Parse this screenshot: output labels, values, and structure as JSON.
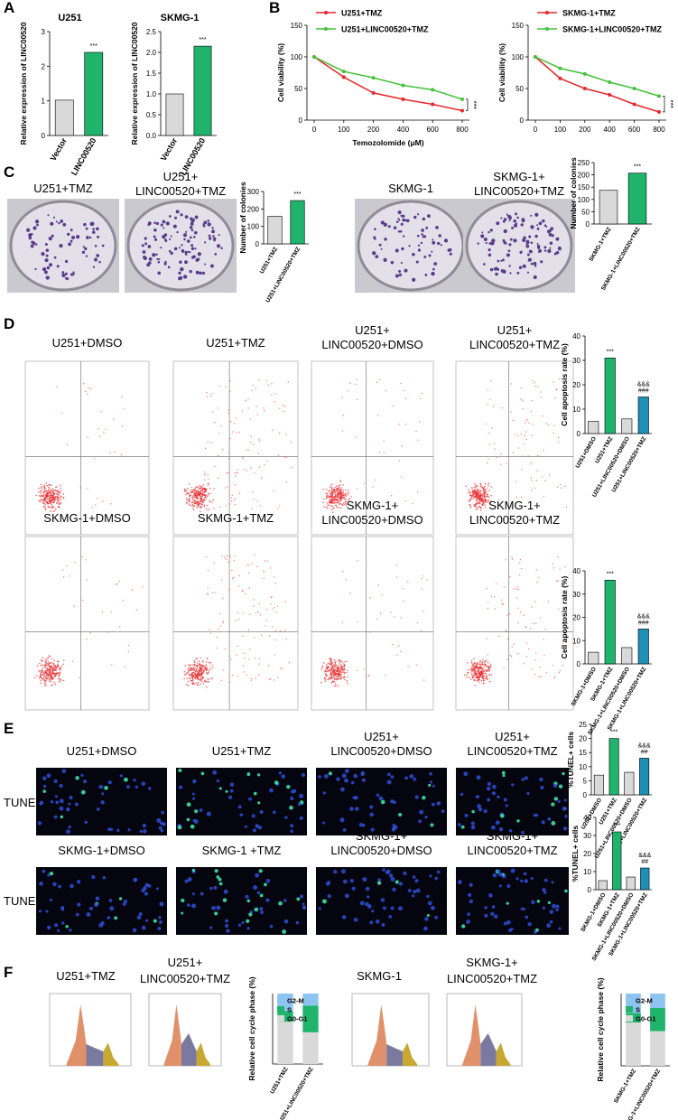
{
  "figure": {
    "panel_labels": [
      "A",
      "B",
      "C",
      "D",
      "E",
      "F"
    ],
    "c_captions": [
      [
        "U251+TMZ"
      ],
      [
        "U251+",
        "LINC00520+TMZ"
      ],
      [
        "SKMG-1"
      ],
      [
        "SKMG-1+",
        "LINC00520+TMZ"
      ]
    ],
    "d_captions": [
      [
        "U251+DMSO"
      ],
      [
        "U251+TMZ"
      ],
      [
        "U251+",
        "LINC00520+DMSO"
      ],
      [
        "U251+",
        "LINC00520+TMZ"
      ],
      [
        "SKMG-1+DMSO"
      ],
      [
        "SKMG-1+TMZ"
      ],
      [
        "SKMG-1+",
        "LINC00520+DMSO"
      ],
      [
        "SKMG-1+",
        "LINC00520+TMZ"
      ]
    ],
    "e_captions": [
      [
        "U251+DMSO"
      ],
      [
        "U251+TMZ"
      ],
      [
        "U251+",
        "LINC00520+DMSO"
      ],
      [
        "U251+",
        "LINC00520+TMZ"
      ],
      [
        "SKMG-1+DMSO"
      ],
      [
        "SKMG-1  +TMZ"
      ],
      [
        "SKMG-1+",
        "LINC00520+DMSO"
      ],
      [
        "SKMG-1+",
        "LINC00520+TMZ"
      ]
    ],
    "e_row_labels": [
      "TUNEL",
      "TUNEL"
    ],
    "f_captions": [
      [
        "U251+TMZ"
      ],
      [
        "U251+",
        "LINC00520+TMZ"
      ],
      [
        "SKMG-1"
      ],
      [
        "SKMG-1+",
        "LINC00520+TMZ"
      ]
    ]
  },
  "chart_data": [
    {
      "type": "bar",
      "title": "U251",
      "ylabel": "Relative expression of LINC00520",
      "categories": [
        "Vector",
        "LINC00520"
      ],
      "values": [
        1.02,
        2.4
      ],
      "colors": [
        "#d9d9d9",
        "#1fb36c"
      ],
      "annotations": [
        null,
        [
          "***"
        ]
      ],
      "ylim": [
        0,
        3
      ],
      "yticks": [
        0,
        1,
        2,
        3
      ]
    },
    {
      "type": "bar",
      "title": "SKMG-1",
      "ylabel": "Relative expression of LINC00520",
      "categories": [
        "Vector",
        "LINC00520"
      ],
      "values": [
        1.0,
        2.15
      ],
      "colors": [
        "#d9d9d9",
        "#1fb36c"
      ],
      "annotations": [
        null,
        [
          "***"
        ]
      ],
      "ylim": [
        0,
        2.5
      ],
      "yticks": [
        {
          "value": 0,
          "label": "0.0"
        },
        0.5,
        {
          "value": 1,
          "label": "1.0"
        },
        1.5,
        {
          "value": 2,
          "label": "2.0"
        },
        2.5
      ]
    },
    {
      "type": "line",
      "ylabel": "Cell viability (%)",
      "xlabel": "Temozolomide (μM)",
      "categories": [
        "0",
        "100",
        "200",
        "400",
        "600",
        "800"
      ],
      "series": [
        {
          "name": "U251+TMZ",
          "color": "#e8262a",
          "values": [
            100,
            68,
            43,
            33,
            25,
            15
          ]
        },
        {
          "name": "U251+LINC00520+TMZ",
          "color": "#44c23a",
          "values": [
            100,
            77,
            67,
            55,
            48,
            33
          ]
        }
      ],
      "annotation": "***",
      "ylim": [
        0,
        150
      ],
      "yticks": [
        0,
        50,
        100,
        150
      ]
    },
    {
      "type": "line",
      "ylabel": "Cell viability (%)",
      "categories": [
        "0",
        "100",
        "200",
        "400",
        "600",
        "800"
      ],
      "series": [
        {
          "name": "SKMG-1+TMZ",
          "color": "#e8262a",
          "values": [
            100,
            66,
            50,
            40,
            25,
            13
          ]
        },
        {
          "name": "SKMG-1+LINC00520+TMZ",
          "color": "#44c23a",
          "values": [
            100,
            82,
            73,
            60,
            50,
            38
          ]
        }
      ],
      "annotation": "***",
      "ylim": [
        0,
        150
      ],
      "yticks": [
        0,
        50,
        100,
        150
      ]
    },
    {
      "type": "bar",
      "ylabel": "Number of colonies",
      "categories": [
        "U251+TMZ",
        "U251+LINC00520+TMZ"
      ],
      "values": [
        158,
        248
      ],
      "colors": [
        "#d9d9d9",
        "#1fb36c"
      ],
      "annotations": [
        null,
        [
          "***"
        ]
      ],
      "ylim": [
        0,
        300
      ],
      "yticks": [
        0,
        100,
        200,
        300
      ]
    },
    {
      "type": "bar",
      "ylabel": "Number of colonies",
      "categories": [
        "SKMG-1+TMZ",
        "SKMG-1+LINC00520+TMZ"
      ],
      "values": [
        137,
        207
      ],
      "colors": [
        "#d9d9d9",
        "#1fb36c"
      ],
      "annotations": [
        null,
        [
          "***"
        ]
      ],
      "ylim": [
        0,
        250
      ],
      "yticks": [
        0,
        50,
        100,
        150,
        200,
        250
      ]
    },
    {
      "type": "bar",
      "ylabel": "Cell apoptosis rate (%)",
      "categories": [
        "U251+DMSO",
        "U251+TMZ",
        "U251+LINC00520+DMSO",
        "U251+LINC00520+TMZ"
      ],
      "values": [
        5,
        31,
        6,
        15
      ],
      "colors": [
        "#d9d9d9",
        "#1fb36c",
        "#d9d9d9",
        "#1e8fb5"
      ],
      "annotations": [
        null,
        [
          "***"
        ],
        null,
        [
          "###",
          "&&&"
        ]
      ],
      "ylim": [
        0,
        40
      ],
      "yticks": [
        0,
        10,
        20,
        30,
        40
      ]
    },
    {
      "type": "bar",
      "ylabel": "Cell apoptosis rate (%)",
      "categories": [
        "SKMG-1+DMSO",
        "SKMG-1+TMZ",
        "SKMG-1+LINC00520+DMSO",
        "SKMG-1+LINC00520+TMZ"
      ],
      "values": [
        5,
        36,
        7,
        15
      ],
      "colors": [
        "#d9d9d9",
        "#1fb36c",
        "#d9d9d9",
        "#1e8fb5"
      ],
      "annotations": [
        null,
        [
          "***"
        ],
        null,
        [
          "###",
          "&&&"
        ]
      ],
      "ylim": [
        0,
        40
      ],
      "yticks": [
        0,
        10,
        20,
        30,
        40
      ]
    },
    {
      "type": "bar",
      "ylabel": "%TUNEL+ cells",
      "categories": [
        "U251+DMSO",
        "U251+TMZ",
        "U251+LINC00520+DMSO",
        "U251+LINC00520+TMZ"
      ],
      "values": [
        7,
        20,
        8,
        13
      ],
      "colors": [
        "#d9d9d9",
        "#1fb36c",
        "#d9d9d9",
        "#1e8fb5"
      ],
      "annotations": [
        null,
        [
          "***"
        ],
        null,
        [
          "##",
          "&&&"
        ]
      ],
      "ylim": [
        0,
        25
      ],
      "yticks": [
        0,
        5,
        10,
        15,
        20,
        25
      ]
    },
    {
      "type": "bar",
      "ylabel": "%TUNEL+ cells",
      "categories": [
        "SKMG-1+DMSO",
        "SKMG-1+TMZ",
        "SKMG-1+LINC00520+DMSO",
        "SKMG-1+LINC00520+TMZ"
      ],
      "values": [
        5,
        32,
        7,
        12
      ],
      "colors": [
        "#d9d9d9",
        "#1fb36c",
        "#d9d9d9",
        "#1e8fb5"
      ],
      "annotations": [
        null,
        [
          "***"
        ],
        null,
        [
          "##",
          "&&&"
        ]
      ],
      "ylim": [
        0,
        40
      ],
      "yticks": [
        0,
        10,
        20,
        30,
        40
      ]
    },
    {
      "type": "stacked",
      "ylabel": "Relative cell cycle phase (%)",
      "categories": [
        "U251+TMZ",
        "U251+LINC00520+TMZ"
      ],
      "series": [
        {
          "name": "G0-G1",
          "color": "#d9d9d9",
          "values": [
            60,
            45
          ]
        },
        {
          "name": "S",
          "color": "#1fb36c",
          "values": [
            15,
            38
          ]
        },
        {
          "name": "G2-M",
          "color": "#8ec5f0",
          "values": [
            25,
            17
          ]
        }
      ],
      "ylim": [
        0,
        100
      ]
    },
    {
      "type": "stacked",
      "ylabel": "Relative cell cycle phase (%)",
      "categories": [
        "SKMG-1+TMZ",
        "SKMG-1+LINC00520+TMZ"
      ],
      "series": [
        {
          "name": "G0-G1",
          "color": "#d9d9d9",
          "values": [
            60,
            48
          ]
        },
        {
          "name": "S",
          "color": "#1fb36c",
          "values": [
            13,
            32
          ]
        },
        {
          "name": "G2-M",
          "color": "#8ec5f0",
          "values": [
            27,
            20
          ]
        }
      ],
      "ylim": [
        0,
        100
      ]
    }
  ]
}
